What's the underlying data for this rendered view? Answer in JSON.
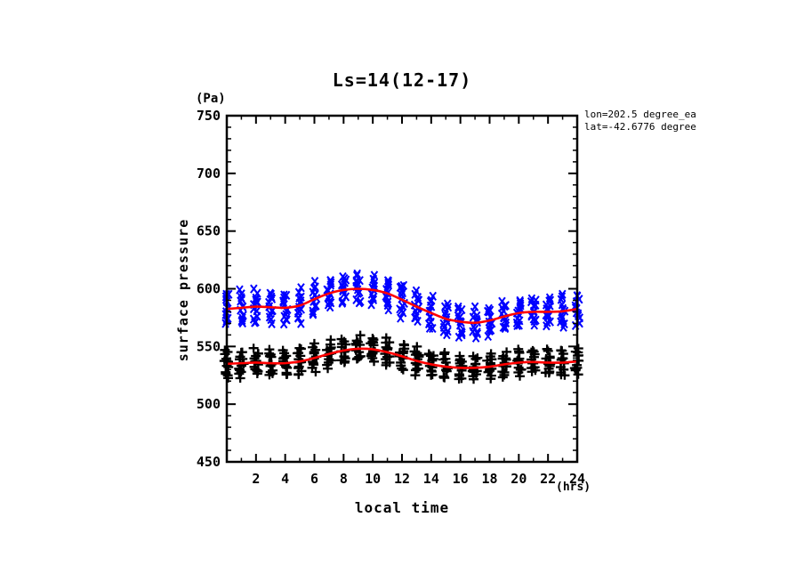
{
  "title": "Ls=14(12-17)",
  "annotation": {
    "line1": "lon=202.5 degree_ea",
    "line2": "lat=-42.6776 degree"
  },
  "axes": {
    "y_unit_label": "(Pa)",
    "x_unit_label": "(hrs)",
    "y_axis_title": "surface pressure",
    "x_axis_title": "local time",
    "y_tick_values": [
      450,
      500,
      550,
      600,
      650,
      700,
      750
    ],
    "x_tick_values": [
      2,
      4,
      6,
      8,
      10,
      12,
      14,
      16,
      18,
      20,
      22,
      24
    ],
    "y_minor_step": 10,
    "x_minor_step": 1
  },
  "colors": {
    "background": "#ffffff",
    "axis": "#000000",
    "upper_series": "#0000ff",
    "lower_series": "#000000",
    "fit_curve": "#ff0000"
  },
  "chart_data": {
    "type": "scatter",
    "title": "Ls=14(12-17)",
    "xlabel": "local time (hrs)",
    "ylabel": "surface pressure (Pa)",
    "xlim": [
      0,
      24
    ],
    "ylim": [
      450,
      750
    ],
    "grid": false,
    "x_hours": [
      0,
      1,
      2,
      3,
      4,
      5,
      6,
      7,
      8,
      9,
      10,
      11,
      12,
      13,
      14,
      15,
      16,
      17,
      18,
      19,
      20,
      21,
      22,
      23,
      24
    ],
    "series": [
      {
        "name": "upper_pressure_scatter",
        "marker": "x",
        "color": "#0000ff",
        "points_per_hour": 13,
        "hourly_mean": [
          582.5,
          583.5,
          584.5,
          584,
          583.5,
          585.5,
          591,
          596,
          599,
          600,
          599,
          596,
          590.5,
          584.5,
          579,
          574,
          571.5,
          570.5,
          572.5,
          576,
          579,
          580,
          580,
          580.5,
          582.5
        ],
        "hourly_spread": [
          14,
          14,
          14,
          14,
          13,
          14,
          14,
          13,
          12,
          12,
          12,
          13,
          14,
          14,
          14,
          14,
          13,
          12,
          12,
          12,
          12,
          12,
          12,
          13,
          13
        ]
      },
      {
        "name": "lower_pressure_scatter",
        "marker": "+",
        "color": "#000000",
        "points_per_hour": 13,
        "hourly_mean": [
          535,
          535.5,
          536,
          535.5,
          535.5,
          537,
          540,
          543.5,
          546.5,
          548,
          547.5,
          545,
          541.5,
          537.5,
          534.5,
          532.5,
          531.5,
          531.5,
          532.5,
          534.5,
          536,
          536.5,
          536,
          536,
          537
        ],
        "hourly_spread": [
          11,
          11,
          11,
          11,
          10,
          11,
          11,
          11,
          11,
          10,
          11,
          11,
          11,
          11,
          11,
          11,
          10,
          10,
          10,
          10,
          10,
          10,
          10,
          11,
          11
        ]
      }
    ],
    "fit_curves": [
      {
        "name": "upper_fit",
        "color": "#ff0000",
        "values": [
          582.5,
          583.5,
          584.5,
          584,
          583.5,
          585.5,
          591,
          596,
          599,
          600,
          599,
          596,
          590.5,
          584.5,
          579,
          574,
          571.5,
          570.5,
          572.5,
          576,
          579,
          580,
          580,
          580.5,
          582.5
        ]
      },
      {
        "name": "lower_fit",
        "color": "#ff0000",
        "values": [
          535,
          535.5,
          536,
          535.5,
          535.5,
          537,
          540,
          543.5,
          546.5,
          548,
          547.5,
          545,
          541.5,
          537.5,
          534.5,
          532.5,
          531.5,
          531.5,
          532.5,
          534.5,
          536,
          536.5,
          536,
          536,
          537
        ]
      }
    ]
  }
}
